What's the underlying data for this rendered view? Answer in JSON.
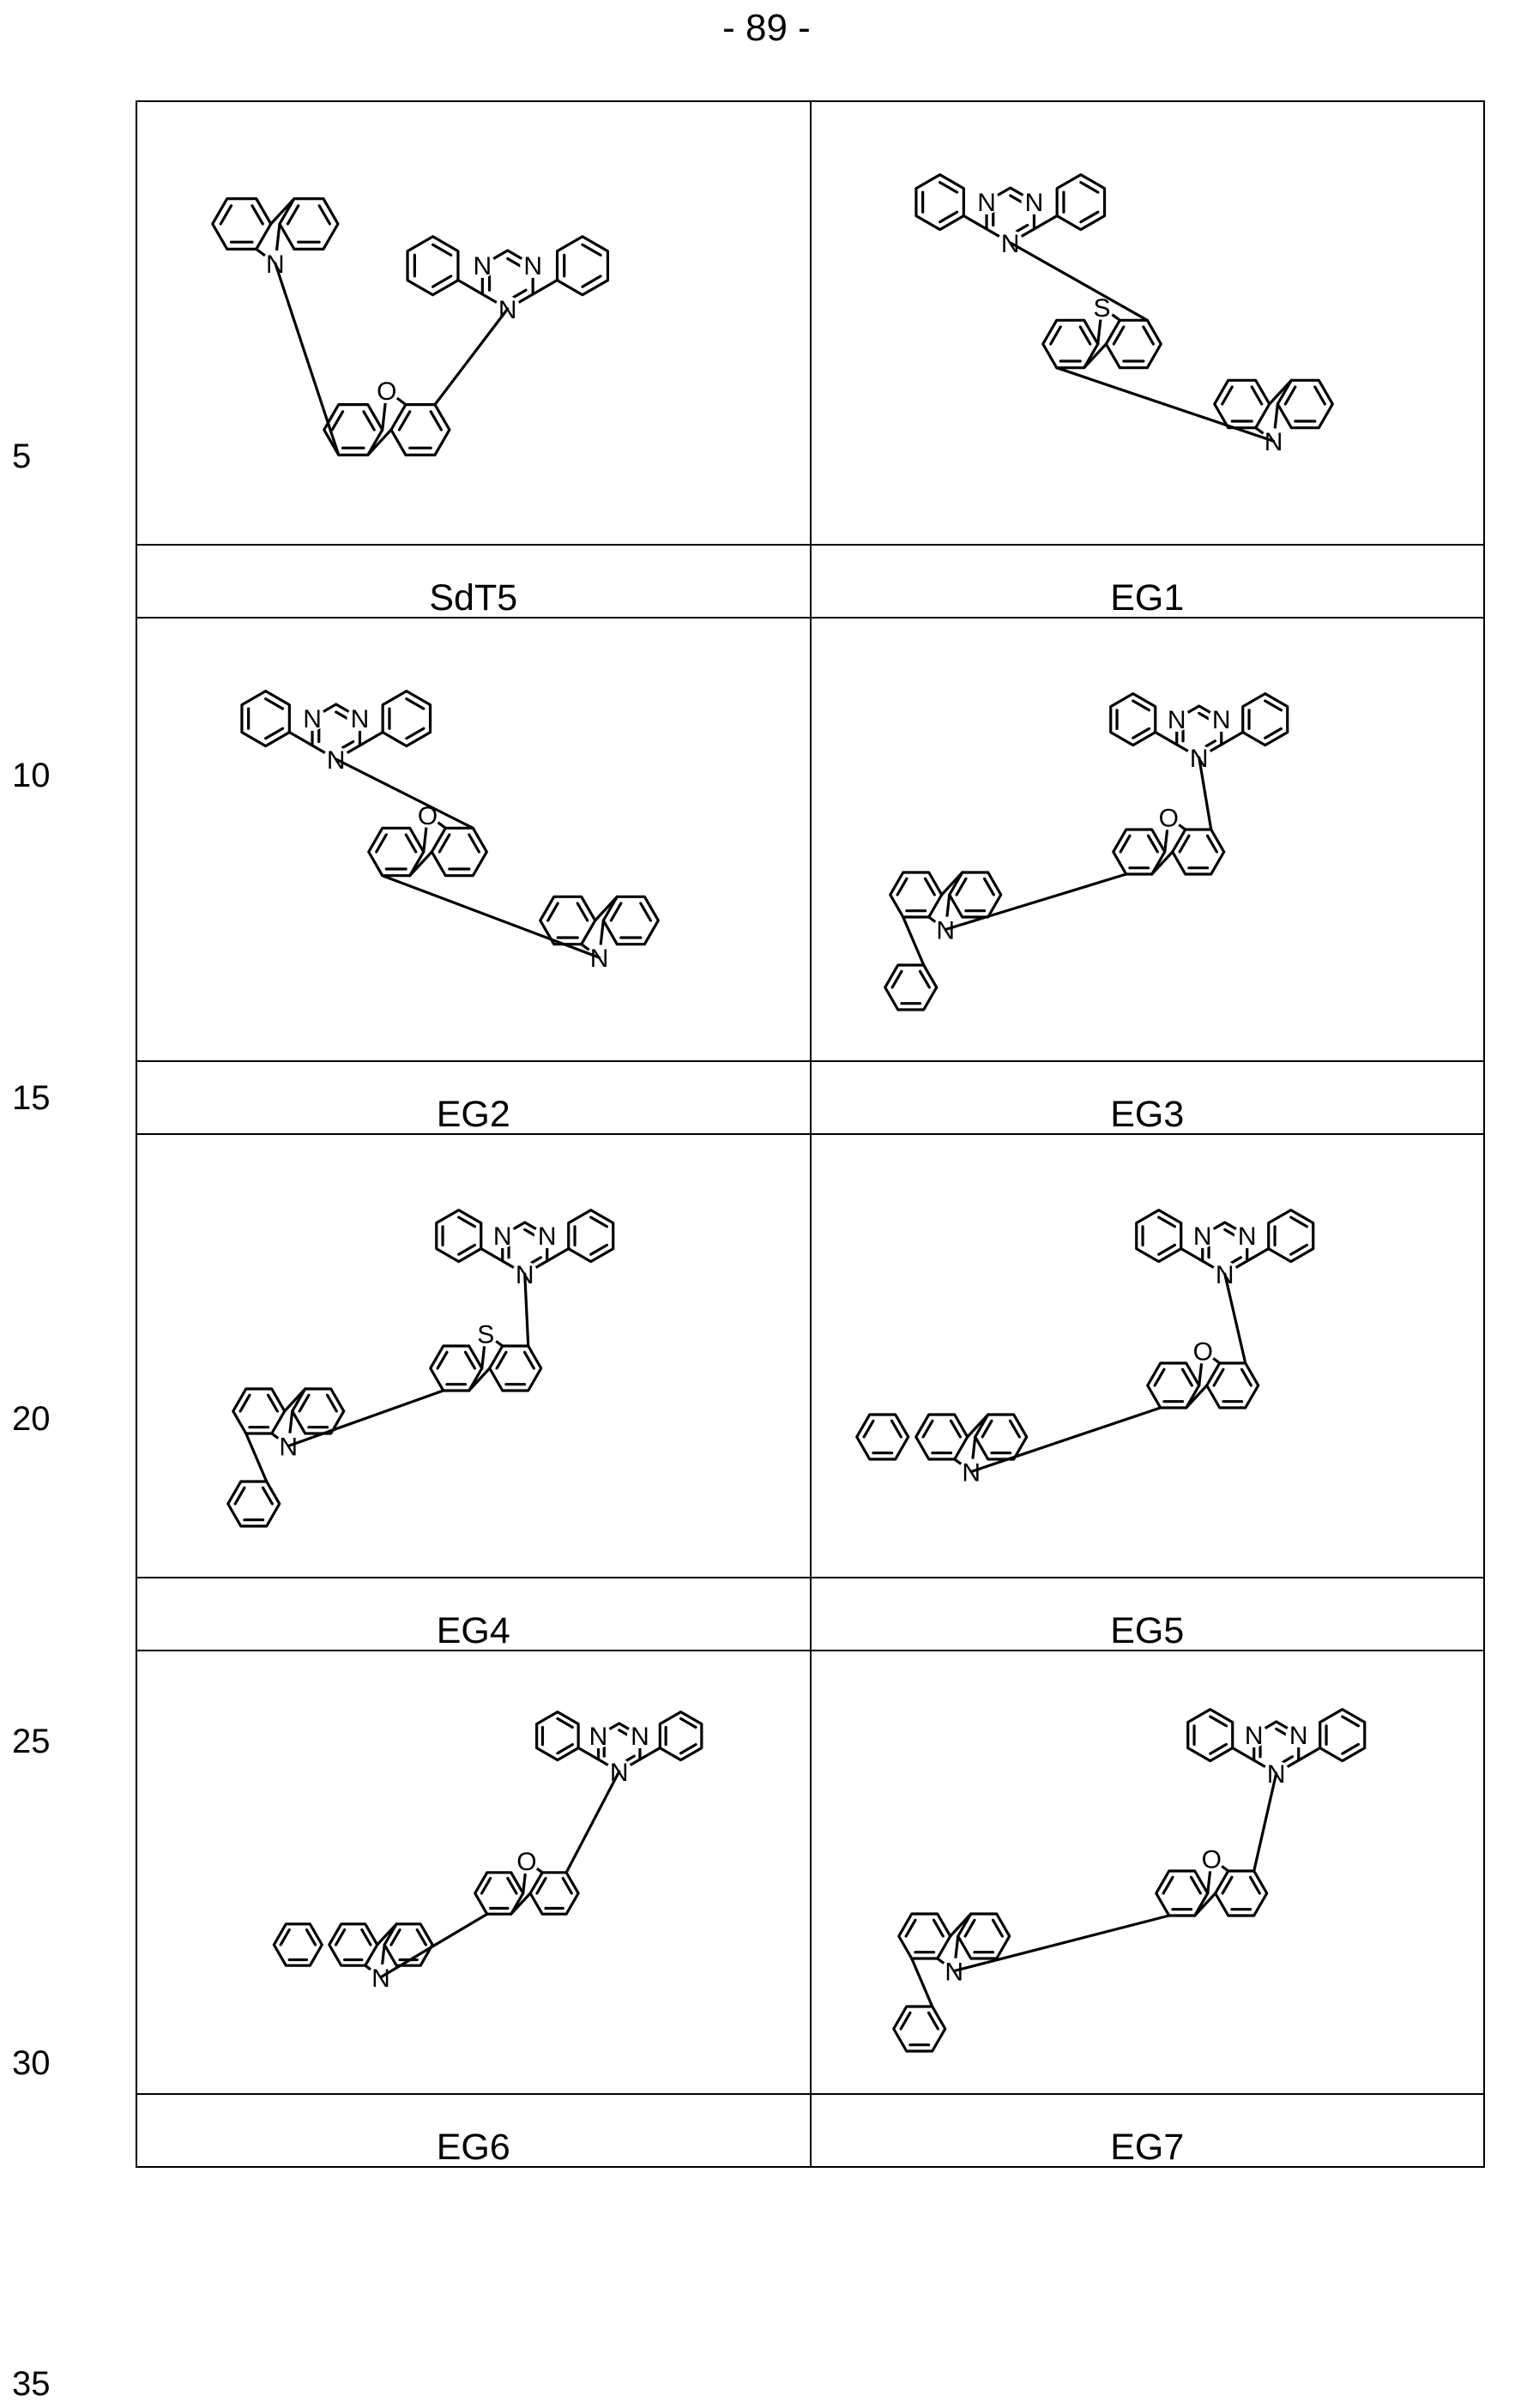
{
  "page": {
    "number": "- 89 -"
  },
  "line_numbers": [
    "5",
    "10",
    "15",
    "20",
    "25",
    "30",
    "35"
  ],
  "compounds": [
    {
      "label": "SdT5",
      "core": "O",
      "structure": "dibenzofuran bearing N-carbazolyl and 4,6-diphenyl-1,3,5-triazin-2-yl on opposite 4-positions"
    },
    {
      "label": "EG1",
      "core": "S",
      "structure": "dibenzothiophene bearing diphenyltriazinyl and 9-carbazolyl"
    },
    {
      "label": "EG2",
      "core": "O",
      "structure": "dibenzofuran bearing diphenyltriazinyl and 9-carbazolyl"
    },
    {
      "label": "EG3",
      "core": "O",
      "structure": "dibenzofuran bearing diphenyltriazinyl and 3-phenylcarbazol-9-yl"
    },
    {
      "label": "EG4",
      "core": "S",
      "structure": "dibenzothiophene bearing diphenyltriazinyl and 3-phenylcarbazol-9-yl"
    },
    {
      "label": "EG5",
      "core": "O",
      "structure": "dibenzofuran bearing diphenyltriazinyl and dimethylindenocarbazolyl"
    },
    {
      "label": "EG6",
      "core": "O",
      "structure": "dibenzofuran bearing diphenyltriazinyl and N-phenyl-bicarbazolyl"
    },
    {
      "label": "EG7",
      "core": "O",
      "structure": "dibenzofuran bearing diphenyltriazinyl and N-phenylindolocarbazolyl"
    }
  ],
  "atom_labels": {
    "nitrogen": "N",
    "oxygen": "O",
    "sulfur": "S"
  }
}
